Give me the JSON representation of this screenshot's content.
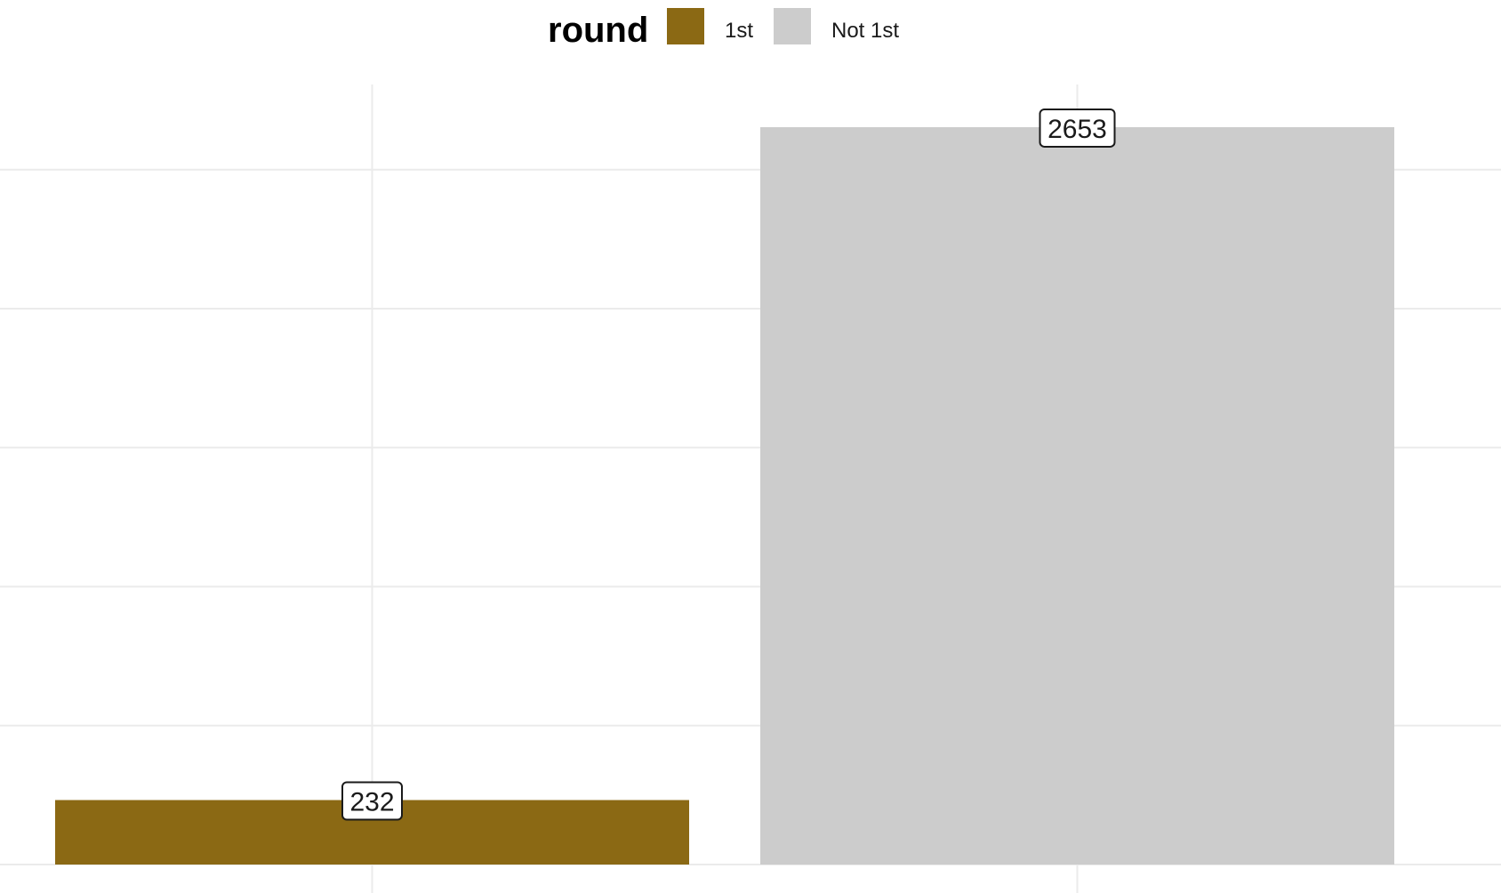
{
  "chart_data": {
    "type": "bar",
    "categories": [
      "1st",
      "Not 1st"
    ],
    "values": [
      232,
      2653
    ],
    "data_labels": [
      "232",
      "2653"
    ],
    "ylim": [
      0,
      2800
    ],
    "legend": {
      "title": "round",
      "placement": "top",
      "entries": [
        {
          "label": "1st",
          "color": "#8b6914"
        },
        {
          "label": "Not 1st",
          "color": "#cccccc"
        }
      ]
    },
    "grid": true,
    "x_tick_labels_visible": false,
    "y_tick_labels_visible": false,
    "colors": {
      "grid": "#ebebeb",
      "label_border": "#1a1a1a",
      "label_fill": "#ffffff"
    }
  }
}
